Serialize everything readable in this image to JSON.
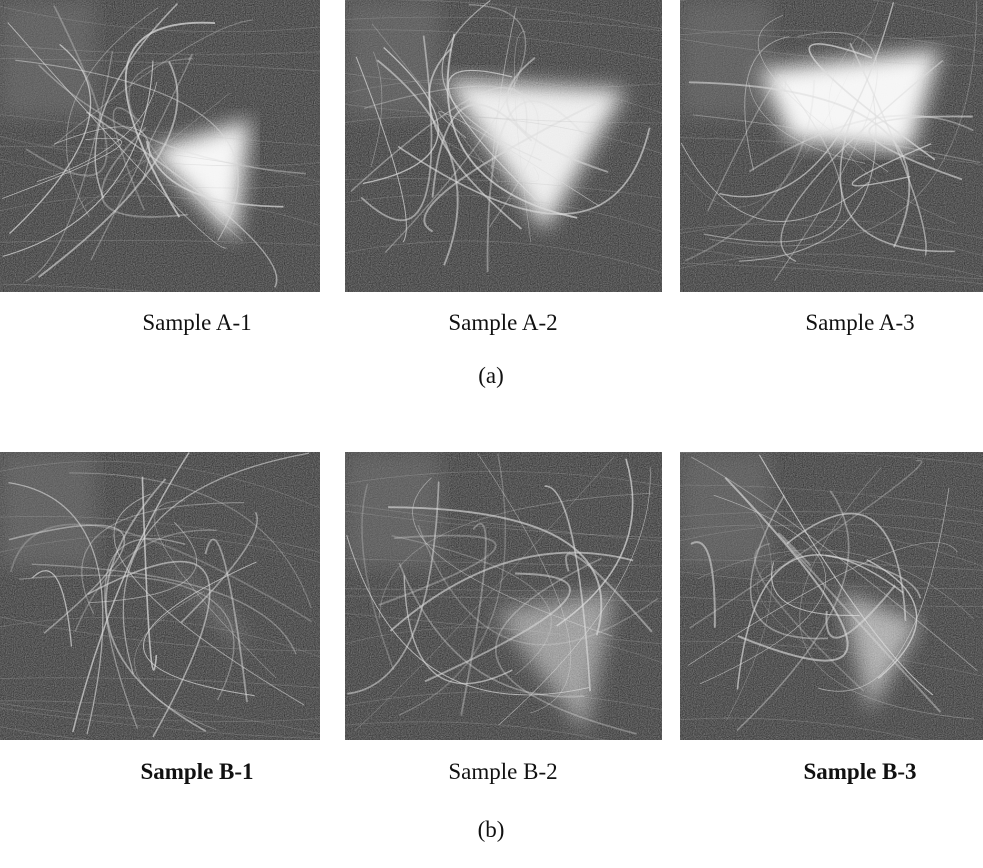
{
  "panels": [
    {
      "label": "(a)",
      "images": [
        {
          "caption": "Sample A-1"
        },
        {
          "caption": "Sample A-2"
        },
        {
          "caption": "Sample A-3"
        }
      ]
    },
    {
      "label": "(b)",
      "images": [
        {
          "caption": "Sample B-1"
        },
        {
          "caption": "Sample B-2"
        },
        {
          "caption": "Sample B-3"
        }
      ]
    }
  ]
}
